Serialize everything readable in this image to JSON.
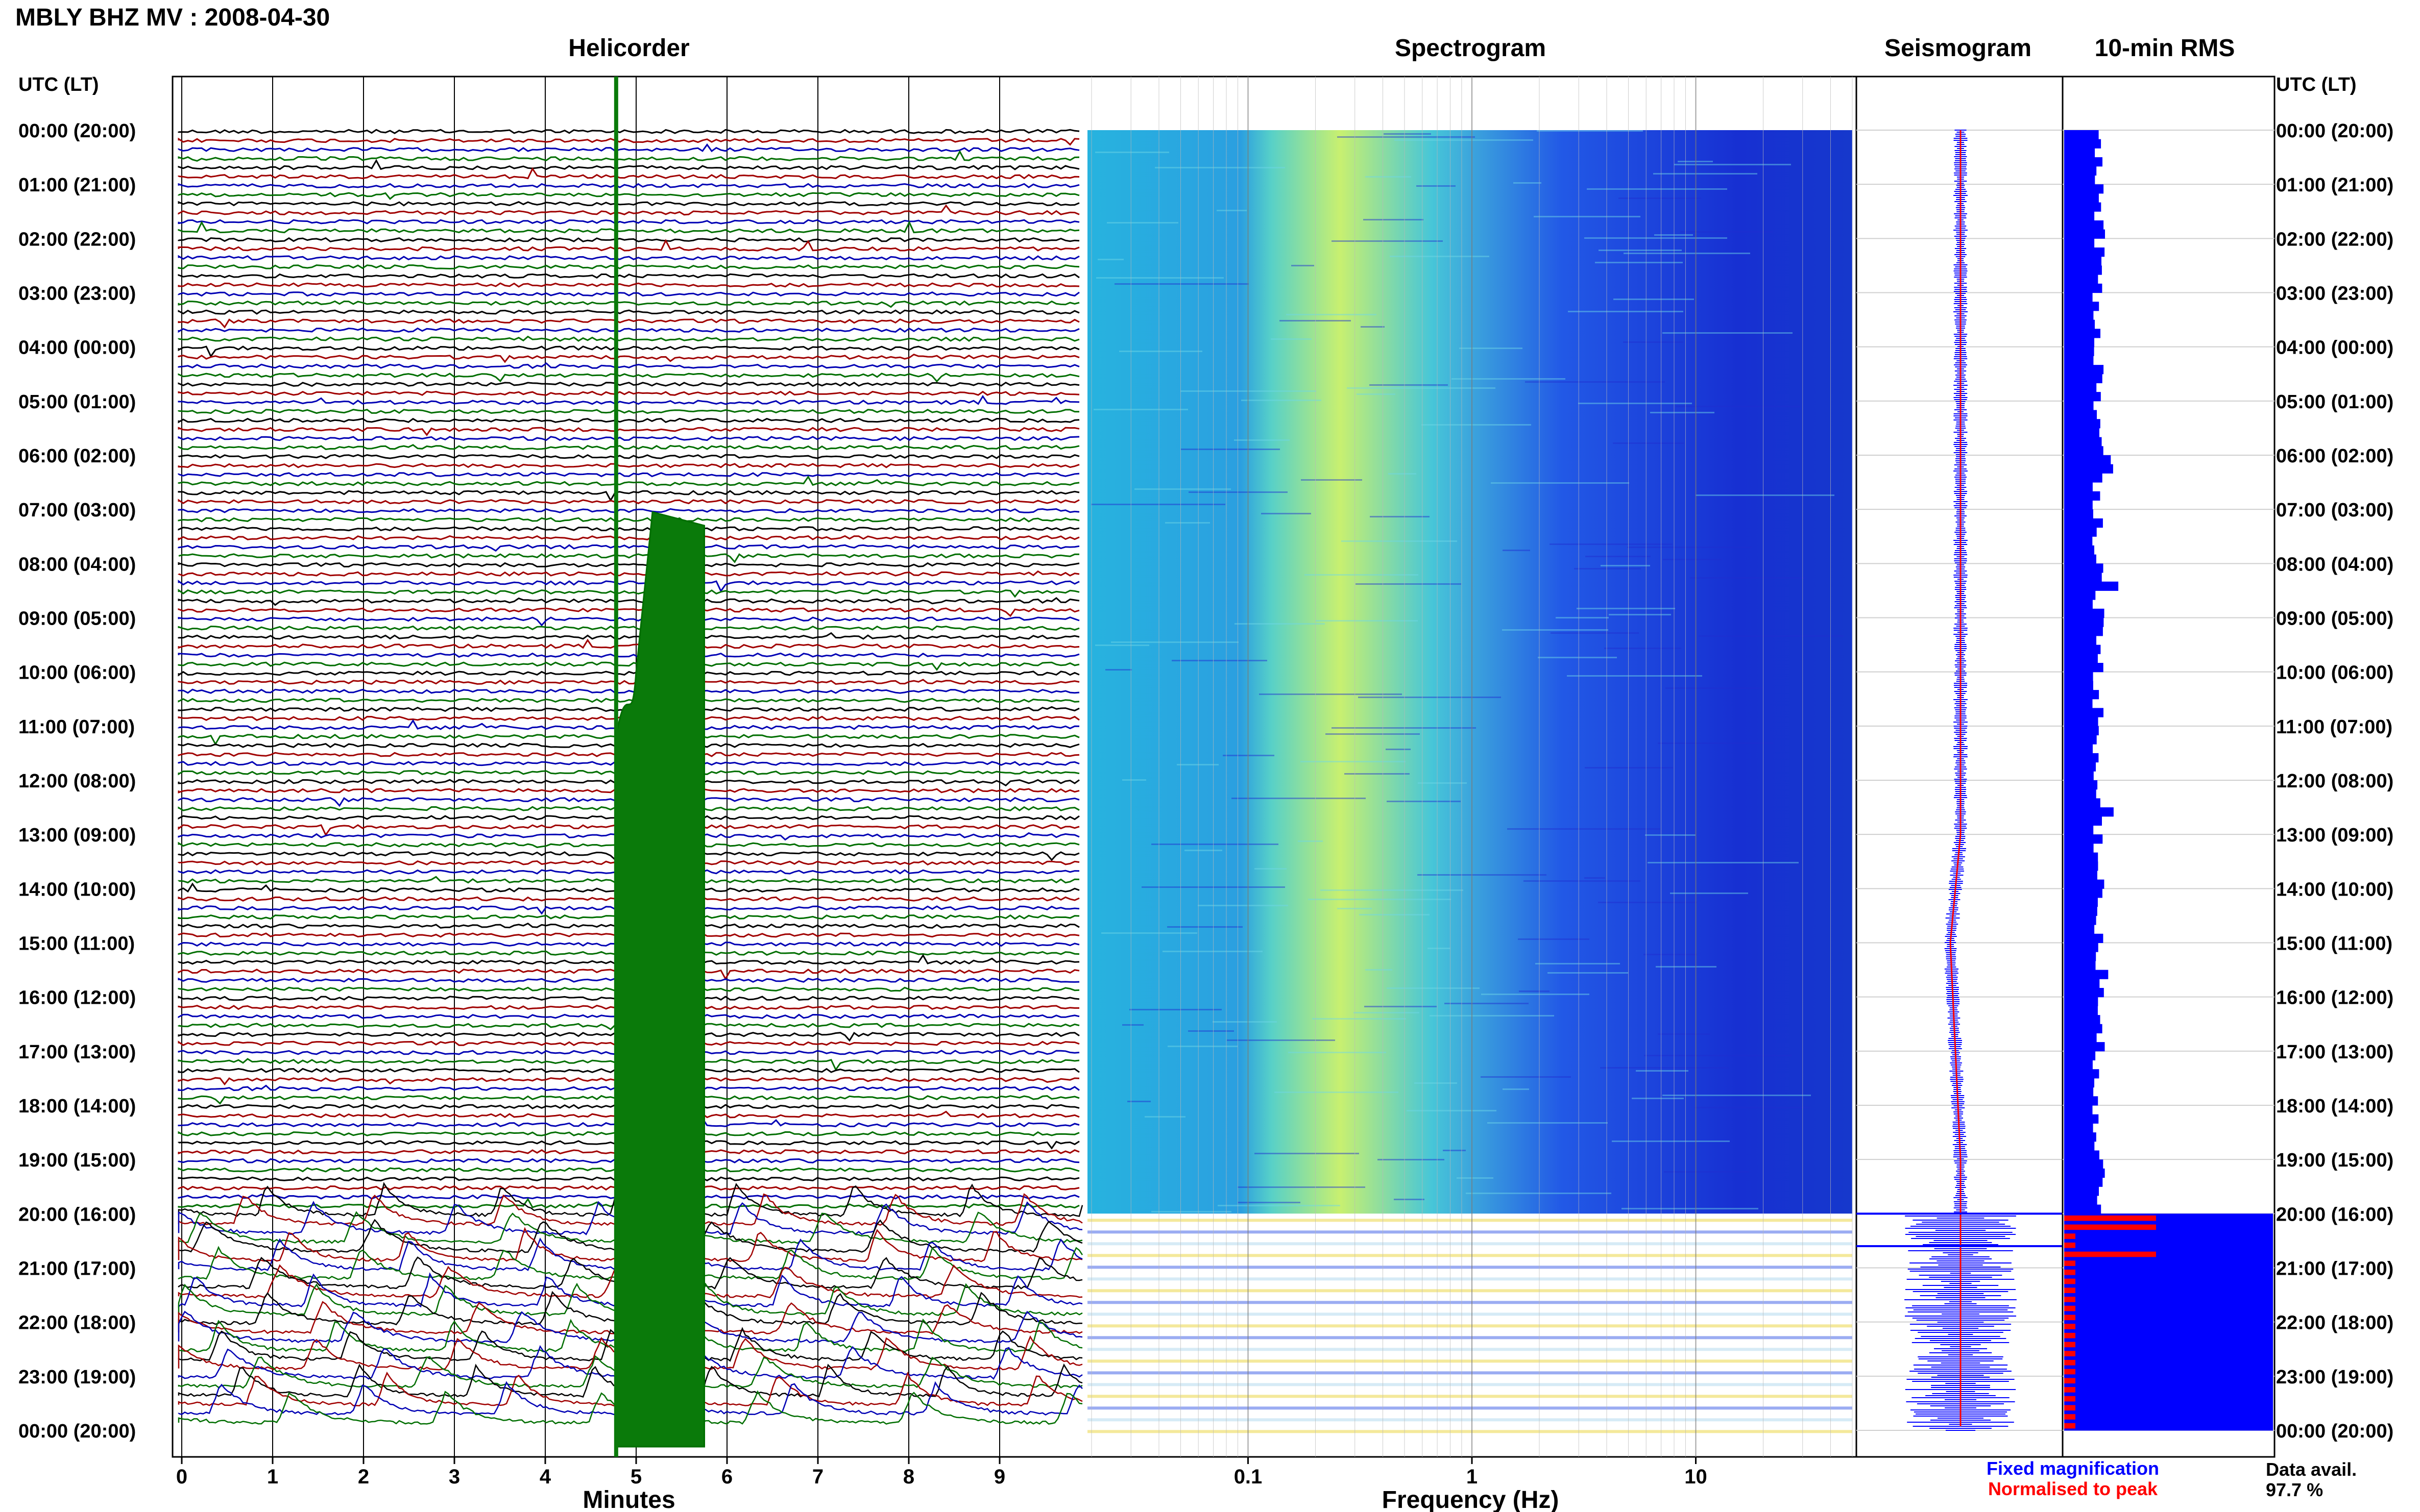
{
  "header": {
    "station_title": "MBLY BHZ MV : 2008-04-30",
    "panel_titles": {
      "helicorder": "Helicorder",
      "spectrogram": "Spectrogram",
      "seismogram": "Seismogram",
      "rms": "10-min RMS"
    },
    "left_axis_title": "UTC (LT)",
    "right_axis_title": "UTC (LT)"
  },
  "footer": {
    "helicorder_xlabel": "Minutes",
    "spectrogram_xlabel": "Frequency (Hz)",
    "legend_fixed": "Fixed magnification",
    "legend_normalised": "Normalised to peak",
    "data_avail_label": "Data avail.",
    "data_avail_value": "97.7 %"
  },
  "colors": {
    "trace_black": "#000000",
    "trace_red": "#a00000",
    "trace_blue": "#0000b4",
    "trace_green": "#006e00",
    "rms_fixed": "#0000ff",
    "rms_normalised": "#ff0000",
    "spectrogram_low": "#1a2bd6",
    "spectrogram_high": "#d8f560"
  },
  "chart_data": [
    {
      "type": "line",
      "title": "Helicorder",
      "xlabel": "Minutes",
      "xlim": [
        0,
        10
      ],
      "x_ticks": [
        "0",
        "1",
        "2",
        "3",
        "4",
        "5",
        "6",
        "7",
        "8",
        "9"
      ],
      "y_tick_labels": [
        "00:00 (20:00)",
        "01:00 (21:00)",
        "02:00 (22:00)",
        "03:00 (23:00)",
        "04:00 (00:00)",
        "05:00 (01:00)",
        "06:00 (02:00)",
        "07:00 (03:00)",
        "08:00 (04:00)",
        "09:00 (05:00)",
        "10:00 (06:00)",
        "11:00 (07:00)",
        "12:00 (08:00)",
        "13:00 (09:00)",
        "14:00 (10:00)",
        "15:00 (11:00)",
        "16:00 (12:00)",
        "17:00 (13:00)",
        "18:00 (14:00)",
        "19:00 (15:00)",
        "20:00 (16:00)",
        "21:00 (17:00)",
        "22:00 (18:00)",
        "23:00 (19:00)",
        "00:00 (20:00)"
      ],
      "lines_per_hour": 6,
      "trace_color_cycle": [
        "black",
        "red",
        "blue",
        "green"
      ],
      "large_event_start_time": "07:00",
      "noisy_section_start": "20:00"
    },
    {
      "type": "heatmap",
      "title": "Spectrogram",
      "xlabel": "Frequency (Hz)",
      "x_scale": "log",
      "xlim": [
        0.02,
        50
      ],
      "x_ticks": [
        "0.1",
        "1",
        "10"
      ],
      "y_axis": "time (UTC), 00:00 to 24:00",
      "energy_peak_frequency": 0.25,
      "change_time": "20:00"
    },
    {
      "type": "line",
      "title": "Seismogram",
      "series": [
        {
          "name": "Fixed magnification",
          "color": "#0000ff"
        },
        {
          "name": "Normalised to peak",
          "color": "#ff0000"
        }
      ]
    },
    {
      "type": "bar",
      "title": "10-min RMS",
      "orientation": "horizontal",
      "series": [
        {
          "name": "Fixed magnification",
          "color": "#0000ff"
        },
        {
          "name": "Normalised to peak",
          "color": "#ff0000"
        }
      ],
      "saturated_from": "20:00"
    }
  ]
}
